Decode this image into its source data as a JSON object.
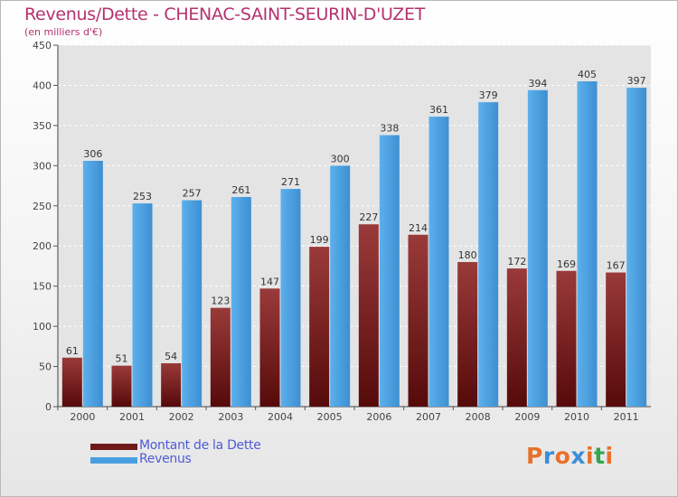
{
  "title": "Revenus/Dette - CHENAC-SAINT-SEURIN-D'UZET",
  "subtitle": "(en milliers d'€)",
  "logo": {
    "text": "Proxiti",
    "colors": [
      "#e8702a",
      "#3a8fd6",
      "#e8702a",
      "#3a8fd6",
      "#e8702a",
      "#2fa84f",
      "#e8702a"
    ]
  },
  "colors": {
    "dette": "#7a1f1f",
    "revenus": "#4a9fe0",
    "title": "#b5316e",
    "legend_text": "#4f5bd5"
  },
  "chart_data": {
    "type": "bar",
    "title": "Revenus/Dette - CHENAC-SAINT-SEURIN-D'UZET",
    "subtitle": "(en milliers d'€)",
    "categories": [
      "2000",
      "2001",
      "2002",
      "2003",
      "2004",
      "2005",
      "2006",
      "2007",
      "2008",
      "2009",
      "2010",
      "2011"
    ],
    "series": [
      {
        "name": "Montant de la Dette",
        "values": [
          61,
          51,
          54,
          123,
          147,
          199,
          227,
          214,
          180,
          172,
          169,
          167
        ]
      },
      {
        "name": "Revenus",
        "values": [
          306,
          253,
          257,
          261,
          271,
          300,
          338,
          361,
          379,
          394,
          405,
          397
        ]
      }
    ],
    "ylim": [
      0,
      450
    ],
    "yticks": [
      0,
      50,
      100,
      150,
      200,
      250,
      300,
      350,
      400,
      450
    ],
    "grid": true,
    "legend": "bottom-left"
  }
}
